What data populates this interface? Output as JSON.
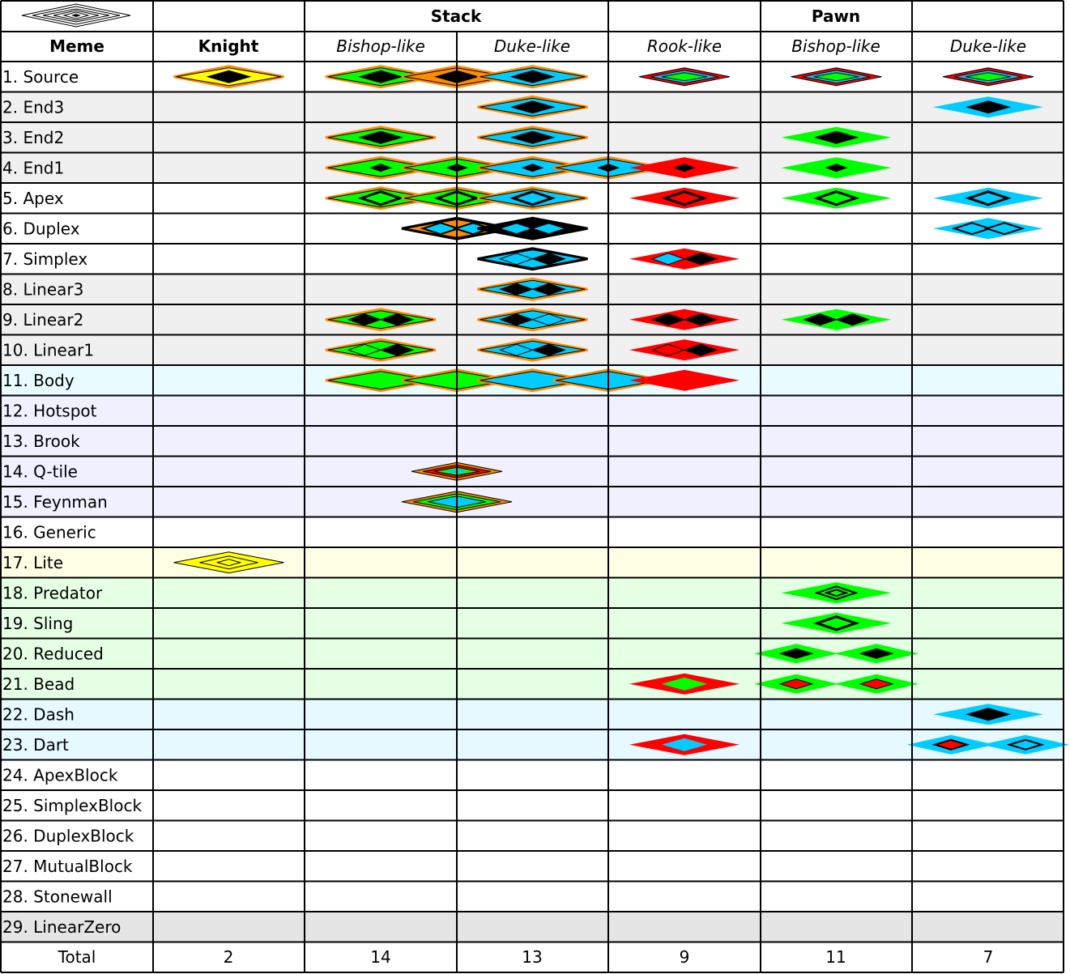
{
  "header": {
    "groups": [
      "Stack",
      "Pawn"
    ],
    "meme_label": "Meme",
    "knight_label": "Knight",
    "sub_columns": [
      "Bishop-like",
      "Duke-like",
      "Rook-like",
      "Bishop-like",
      "Duke-like"
    ],
    "corner_icon": "nested-diamond-logo-icon"
  },
  "colors": {
    "yellow": "#FFFF00",
    "orange": "#FF8C00",
    "green": "#00FF00",
    "cyan": "#00CCFF",
    "red": "#FF0000",
    "black": "#000000",
    "row_gray": "#F0F0F0",
    "row_ice": "#E8FCFF",
    "row_lavender": "#F0F0FF",
    "row_cream": "#FFFFE5",
    "row_mint": "#E5FFE5",
    "row_sky": "#E5F9FF",
    "row_dark_gray": "#E5E5E5"
  },
  "rows": [
    {
      "label": " 1. Source",
      "bg": "white"
    },
    {
      "label": " 2. End3",
      "bg": "gray"
    },
    {
      "label": " 3. End2",
      "bg": "gray"
    },
    {
      "label": " 4. End1",
      "bg": "gray"
    },
    {
      "label": " 5. Apex",
      "bg": "white"
    },
    {
      "label": " 6. Duplex",
      "bg": "white"
    },
    {
      "label": " 7. Simplex",
      "bg": "white"
    },
    {
      "label": " 8. Linear3",
      "bg": "gray"
    },
    {
      "label": " 9. Linear2",
      "bg": "gray"
    },
    {
      "label": "10. Linear1",
      "bg": "gray"
    },
    {
      "label": "11. Body",
      "bg": "ice"
    },
    {
      "label": "12. Hotspot",
      "bg": "lavender"
    },
    {
      "label": "13. Brook",
      "bg": "lavender"
    },
    {
      "label": "14. Q-tile",
      "bg": "lavender"
    },
    {
      "label": "15. Feynman",
      "bg": "lavender"
    },
    {
      "label": "16. Generic",
      "bg": "white"
    },
    {
      "label": "17. Lite",
      "bg": "cream"
    },
    {
      "label": "18. Predator",
      "bg": "mint"
    },
    {
      "label": "19. Sling",
      "bg": "mint"
    },
    {
      "label": "20. Reduced",
      "bg": "mint"
    },
    {
      "label": "21. Bead",
      "bg": "mint"
    },
    {
      "label": "22. Dash",
      "bg": "sky"
    },
    {
      "label": "23. Dart",
      "bg": "sky"
    },
    {
      "label": "24. ApexBlock",
      "bg": "white"
    },
    {
      "label": "25. SimplexBlock",
      "bg": "white"
    },
    {
      "label": "26. DuplexBlock",
      "bg": "white"
    },
    {
      "label": "27. MutualBlock",
      "bg": "white"
    },
    {
      "label": "28. Stonewall",
      "bg": "white"
    },
    {
      "label": "29. LinearZero",
      "bg": "dark_gray"
    }
  ],
  "totals": {
    "label": "Total",
    "values": [
      "2",
      "14",
      "13",
      "9",
      "11",
      "7"
    ]
  },
  "glyphs": [
    {
      "row": 1,
      "col": 1,
      "kind": "solid",
      "outer": "yellow",
      "border": "orange",
      "inner": "black"
    },
    {
      "row": 1,
      "col": 2,
      "kind": "solid",
      "outer": "green",
      "border": "orange",
      "inner": "black"
    },
    {
      "row": 1,
      "col": 2.5,
      "kind": "solid",
      "outer": "orange",
      "border": "orange",
      "inner": "black"
    },
    {
      "row": 1,
      "col": 3,
      "kind": "solid",
      "outer": "cyan",
      "border": "orange",
      "inner": "black"
    },
    {
      "row": 1,
      "col": 4,
      "kind": "ring3",
      "outer": "red",
      "mid": "cyan",
      "inner": "green"
    },
    {
      "row": 1,
      "col": 5,
      "kind": "ring3",
      "outer": "red",
      "mid": "cyan",
      "inner": "green"
    },
    {
      "row": 1,
      "col": 6,
      "kind": "ring3",
      "outer": "red",
      "mid": "cyan",
      "inner": "green"
    },
    {
      "row": 2,
      "col": 3,
      "kind": "solid",
      "outer": "cyan",
      "border": "orange",
      "inner": "black"
    },
    {
      "row": 2,
      "col": 6,
      "kind": "solid",
      "outer": "cyan",
      "border": "none",
      "inner": "black"
    },
    {
      "row": 3,
      "col": 2,
      "kind": "solid",
      "outer": "green",
      "border": "orange",
      "inner": "black"
    },
    {
      "row": 3,
      "col": 3,
      "kind": "solid",
      "outer": "cyan",
      "border": "orange",
      "inner": "black"
    },
    {
      "row": 3,
      "col": 5,
      "kind": "solid",
      "outer": "green",
      "border": "none",
      "inner": "black"
    },
    {
      "row": 4,
      "col": 2,
      "kind": "small",
      "outer": "green",
      "border": "orange",
      "inner": "black"
    },
    {
      "row": 4,
      "col": 2.5,
      "kind": "small",
      "outer": "green",
      "border": "orange",
      "inner": "black"
    },
    {
      "row": 4,
      "col": 3,
      "kind": "small",
      "outer": "cyan",
      "border": "orange",
      "inner": "black"
    },
    {
      "row": 4,
      "col": 3.5,
      "kind": "small",
      "outer": "cyan",
      "border": "orange",
      "inner": "black"
    },
    {
      "row": 4,
      "col": 4,
      "kind": "small",
      "outer": "red",
      "border": "none",
      "inner": "black"
    },
    {
      "row": 4,
      "col": 5,
      "kind": "small",
      "outer": "green",
      "border": "none",
      "inner": "black"
    },
    {
      "row": 5,
      "col": 2,
      "kind": "hollow",
      "outer": "green",
      "border": "orange",
      "inner": "black"
    },
    {
      "row": 5,
      "col": 2.5,
      "kind": "hollow",
      "outer": "green",
      "border": "orange",
      "inner": "black"
    },
    {
      "row": 5,
      "col": 3,
      "kind": "hollow",
      "outer": "cyan",
      "border": "orange",
      "inner": "black"
    },
    {
      "row": 5,
      "col": 4,
      "kind": "hollow",
      "outer": "red",
      "border": "none",
      "inner": "black"
    },
    {
      "row": 5,
      "col": 5,
      "kind": "hollow",
      "outer": "green",
      "border": "none",
      "inner": "black"
    },
    {
      "row": 5,
      "col": 6,
      "kind": "hollow",
      "outer": "cyan",
      "border": "none",
      "inner": "black"
    },
    {
      "row": 6,
      "col": 2.5,
      "kind": "duplex",
      "outer": "orange",
      "border": "black",
      "inner": "cyan"
    },
    {
      "row": 6,
      "col": 3,
      "kind": "duplex",
      "outer": "black",
      "border": "black",
      "inner": "cyan"
    },
    {
      "row": 6,
      "col": 6,
      "kind": "duplex",
      "outer": "cyan",
      "border": "none",
      "inner": "cyan"
    },
    {
      "row": 7,
      "col": 3,
      "kind": "pair",
      "outer": "cyan",
      "border": "black",
      "left": "cyan",
      "right": "black"
    },
    {
      "row": 7,
      "col": 4,
      "kind": "pair",
      "outer": "red",
      "border": "none",
      "left": "cyan",
      "right": "black"
    },
    {
      "row": 8,
      "col": 3,
      "kind": "pair",
      "outer": "cyan",
      "border": "orange",
      "left": "black",
      "right": "black"
    },
    {
      "row": 9,
      "col": 2,
      "kind": "pair",
      "outer": "green",
      "border": "orange",
      "left": "black",
      "right": "black"
    },
    {
      "row": 9,
      "col": 3,
      "kind": "pair",
      "outer": "cyan",
      "border": "orange",
      "left": "black",
      "right": "cyan"
    },
    {
      "row": 9,
      "col": 4,
      "kind": "pair",
      "outer": "red",
      "border": "none",
      "left": "black",
      "right": "black"
    },
    {
      "row": 9,
      "col": 5,
      "kind": "pair",
      "outer": "green",
      "border": "none",
      "left": "black",
      "right": "black"
    },
    {
      "row": 10,
      "col": 2,
      "kind": "pair",
      "outer": "green",
      "border": "orange",
      "left": "green",
      "right": "black"
    },
    {
      "row": 10,
      "col": 3,
      "kind": "pair",
      "outer": "cyan",
      "border": "orange",
      "left": "cyan",
      "right": "black"
    },
    {
      "row": 10,
      "col": 4,
      "kind": "pair",
      "outer": "red",
      "border": "none",
      "left": "red",
      "right": "black"
    },
    {
      "row": 11,
      "col": 2,
      "kind": "plain",
      "outer": "green",
      "border": "orange"
    },
    {
      "row": 11,
      "col": 2.5,
      "kind": "plain",
      "outer": "green",
      "border": "orange"
    },
    {
      "row": 11,
      "col": 3,
      "kind": "plain",
      "outer": "cyan",
      "border": "orange"
    },
    {
      "row": 11,
      "col": 3.5,
      "kind": "plain",
      "outer": "cyan",
      "border": "orange"
    },
    {
      "row": 11,
      "col": 4,
      "kind": "plain",
      "outer": "red",
      "border": "none"
    },
    {
      "row": 14,
      "col": 2.5,
      "kind": "ring3",
      "outer": "orange",
      "mid": "red",
      "inner": "green",
      "core": "cyan"
    },
    {
      "row": 15,
      "col": 2.5,
      "kind": "ring2",
      "outer": "orange",
      "mid": "green",
      "inner": "cyan"
    },
    {
      "row": 17,
      "col": 1,
      "kind": "lite",
      "outer": "yellow",
      "border": "black"
    },
    {
      "row": 18,
      "col": 5,
      "kind": "hollow-small",
      "outer": "green",
      "border": "none",
      "inner": "black"
    },
    {
      "row": 19,
      "col": 5,
      "kind": "hollow",
      "outer": "green",
      "border": "none",
      "inner": "black"
    },
    {
      "row": 20,
      "col": 5,
      "kind": "solid-pair",
      "outer": "green",
      "border": "none",
      "inner": "black"
    },
    {
      "row": 21,
      "col": 4,
      "kind": "solid",
      "outer": "red",
      "border": "none",
      "inner": "green"
    },
    {
      "row": 21,
      "col": 5,
      "kind": "solid-pair",
      "outer": "green",
      "border": "none",
      "inner": "red"
    },
    {
      "row": 22,
      "col": 6,
      "kind": "solid",
      "outer": "cyan",
      "border": "none",
      "inner": "black"
    },
    {
      "row": 23,
      "col": 4,
      "kind": "solid",
      "outer": "red",
      "border": "none",
      "inner": "cyan"
    },
    {
      "row": 23,
      "col": 6,
      "kind": "dart-pair",
      "outer": "cyan",
      "border": "none",
      "left": "red",
      "right": "cyan"
    }
  ]
}
